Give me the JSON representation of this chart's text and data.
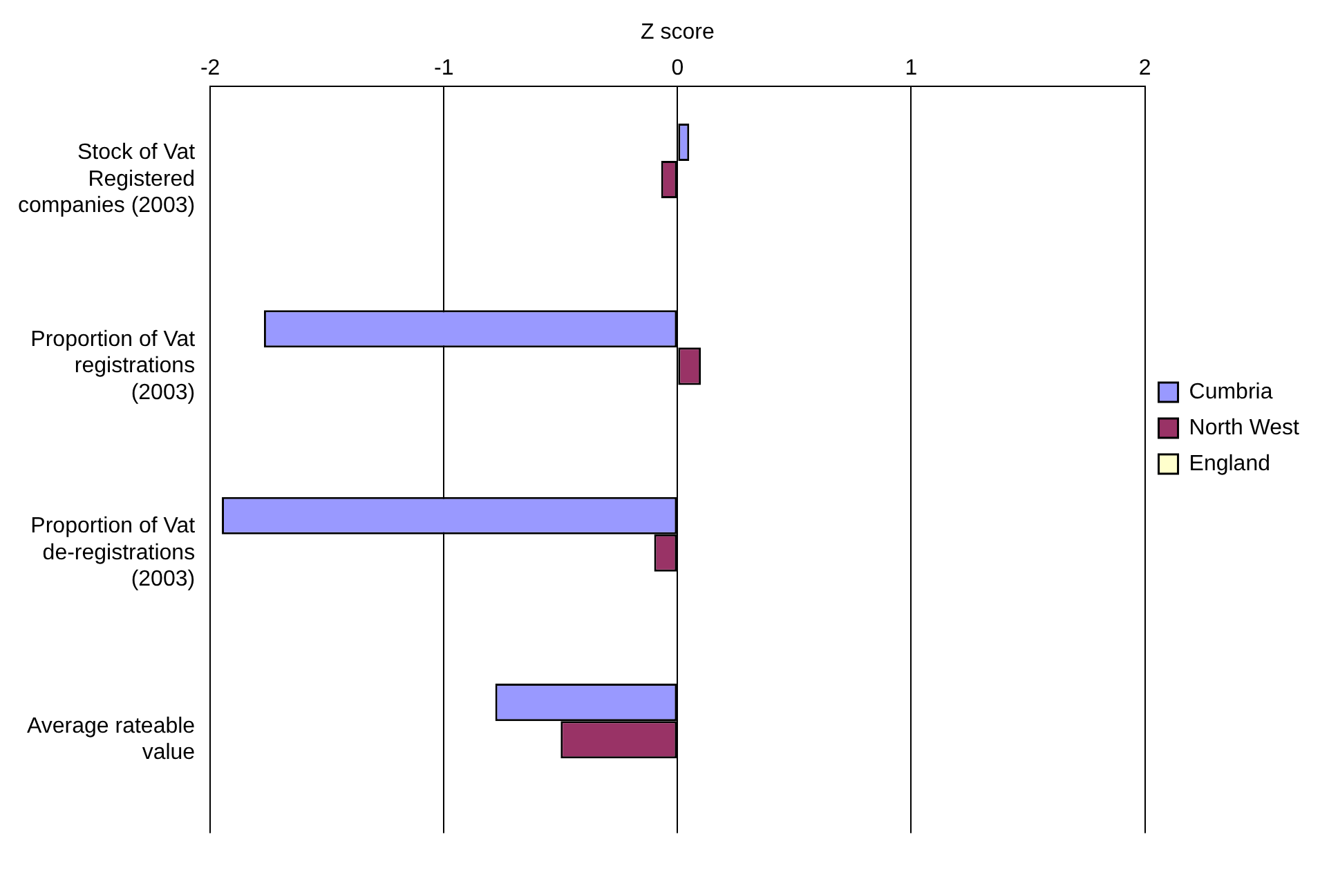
{
  "chart_data": {
    "type": "bar",
    "orientation": "horizontal",
    "xlabel": "Z score",
    "categories": [
      "Stock of Vat Registered companies (2003)",
      "Proportion of Vat registrations (2003)",
      "Proportion of Vat de-registrations (2003)",
      "Average rateable value"
    ],
    "series": [
      {
        "name": "Cumbria",
        "color": "#9999ff",
        "values": [
          0.05,
          -1.77,
          -1.95,
          -0.78
        ]
      },
      {
        "name": "North West",
        "color": "#993366",
        "values": [
          -0.07,
          0.1,
          -0.1,
          -0.5
        ]
      },
      {
        "name": "England",
        "color": "#ffffcc",
        "values": [
          0,
          0,
          0,
          0
        ]
      }
    ],
    "xlim": [
      -2,
      2
    ],
    "xticks": [
      -2,
      -1,
      0,
      1,
      2
    ],
    "grid": "x",
    "legend": "right"
  }
}
